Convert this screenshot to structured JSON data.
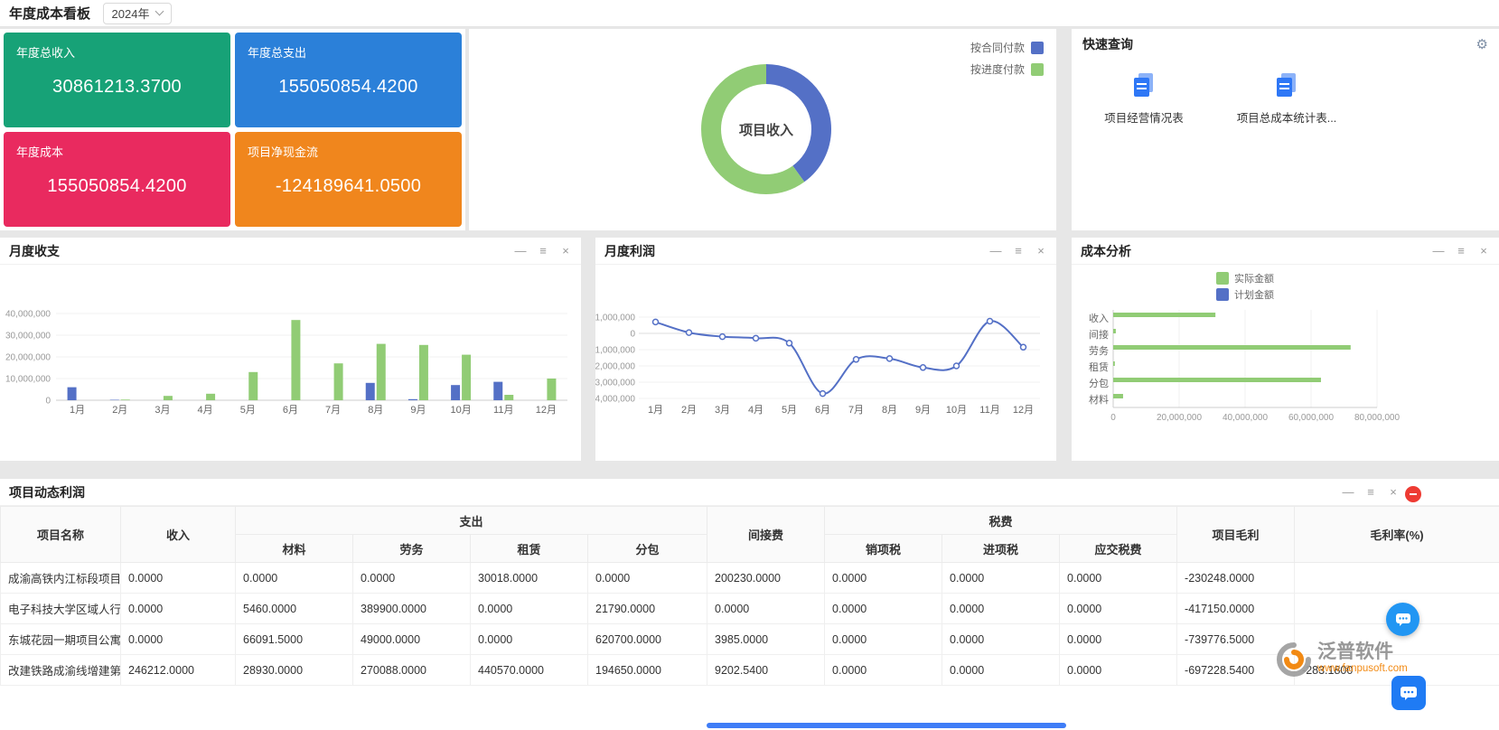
{
  "topbar": {
    "title": "年度成本看板",
    "year": "2024年"
  },
  "icons": {
    "gear": "⚙"
  },
  "window_controls": {
    "minimize": "—",
    "menu": "≡",
    "close": "×"
  },
  "kpi_cards": [
    {
      "label": "年度总收入",
      "value": "30861213.3700",
      "color": "#17a277"
    },
    {
      "label": "年度总支出",
      "value": "155050854.4200",
      "color": "#2b80d9"
    },
    {
      "label": "年度成本",
      "value": "155050854.4200",
      "color": "#e92a5f"
    },
    {
      "label": "项目净现金流",
      "value": "-124189641.0500",
      "color": "#f0861d"
    }
  ],
  "quick_query": {
    "title": "快速查询",
    "items": [
      {
        "label": "项目经营情况表"
      },
      {
        "label": "项目总成本统计表..."
      }
    ]
  },
  "panels": {
    "monthly_balance": "月度收支",
    "monthly_profit": "月度利润",
    "cost_analysis": "成本分析",
    "project_profit": "项目动态利润"
  },
  "chart_data": [
    {
      "id": "donut",
      "type": "pie",
      "title": "项目收入",
      "legend_position": "top-right",
      "series": [
        {
          "name": "按合同付款",
          "value": 40,
          "color": "#5470C6"
        },
        {
          "name": "按进度付款",
          "value": 60,
          "color": "#91CC75"
        }
      ]
    },
    {
      "id": "monthly_balance",
      "type": "bar",
      "title": "月度收支",
      "categories": [
        "1月",
        "2月",
        "3月",
        "4月",
        "5月",
        "6月",
        "7月",
        "8月",
        "9月",
        "10月",
        "11月",
        "12月"
      ],
      "series": [
        {
          "name": "bar-blue",
          "color": "#5470C6",
          "values": [
            6000000,
            200000,
            0,
            0,
            0,
            0,
            0,
            8000000,
            500000,
            7000000,
            8500000,
            0
          ]
        },
        {
          "name": "bar-green",
          "color": "#91CC75",
          "values": [
            0,
            300000,
            2000000,
            3000000,
            13000000,
            37000000,
            17000000,
            26000000,
            25500000,
            21000000,
            2500000,
            10000000
          ]
        }
      ],
      "ylim": [
        0,
        40000000
      ],
      "yticks": [
        "40,000,000",
        "30,000,000",
        "20,000,000",
        "10,000,000",
        "0"
      ]
    },
    {
      "id": "monthly_profit",
      "type": "line",
      "title": "月度利润",
      "categories": [
        "1月",
        "2月",
        "3月",
        "4月",
        "5月",
        "6月",
        "7月",
        "8月",
        "9月",
        "10月",
        "11月",
        "12月"
      ],
      "series": [
        {
          "name": "利润",
          "color": "#5470C6",
          "values": [
            700000,
            50000,
            -200000,
            -300000,
            -600000,
            -3700000,
            -1600000,
            -1550000,
            -2100000,
            -2000000,
            750000,
            -850000
          ]
        }
      ],
      "ylim": [
        -4000000,
        1000000
      ],
      "yticks": [
        "1,000,000",
        "0",
        "-1,000,000",
        "-2,000,000",
        "-3,000,000",
        "-4,000,000"
      ]
    },
    {
      "id": "cost_analysis",
      "type": "hbar",
      "title": "成本分析",
      "categories": [
        "收入",
        "间接",
        "劳务",
        "租赁",
        "分包",
        "材料"
      ],
      "series": [
        {
          "name": "实际金额",
          "color": "#91CC75",
          "values": [
            31000000,
            800000,
            72000000,
            500000,
            63000000,
            3000000
          ]
        },
        {
          "name": "计划金额",
          "color": "#5470C6",
          "values": [
            0,
            0,
            0,
            0,
            0,
            0
          ]
        }
      ],
      "xlim": [
        0,
        80000000
      ],
      "xticks": [
        "0",
        "20,000,000",
        "40,000,000",
        "60,000,000",
        "80,000,000"
      ]
    }
  ],
  "table": {
    "title": "项目动态利润",
    "columns_row1": [
      {
        "label": "项目名称",
        "rowspan": 2
      },
      {
        "label": "收入",
        "rowspan": 2
      },
      {
        "label": "支出",
        "colspan": 4
      },
      {
        "label": "间接费",
        "rowspan": 2
      },
      {
        "label": "税费",
        "colspan": 3
      },
      {
        "label": "项目毛利",
        "rowspan": 2
      },
      {
        "label": "毛利率(%)",
        "rowspan": 2
      }
    ],
    "columns_row2": [
      "材料",
      "劳务",
      "租赁",
      "分包",
      "销项税",
      "进项税",
      "应交税费"
    ],
    "rows": [
      [
        "成渝高铁内江标段项目",
        "0.0000",
        "0.0000",
        "0.0000",
        "30018.0000",
        "0.0000",
        "200230.0000",
        "0.0000",
        "0.0000",
        "0.0000",
        "-230248.0000",
        ""
      ],
      [
        "电子科技大学区域人行",
        "0.0000",
        "5460.0000",
        "389900.0000",
        "0.0000",
        "21790.0000",
        "0.0000",
        "0.0000",
        "0.0000",
        "0.0000",
        "-417150.0000",
        ""
      ],
      [
        "东城花园一期项目公寓",
        "0.0000",
        "66091.5000",
        "49000.0000",
        "0.0000",
        "620700.0000",
        "3985.0000",
        "0.0000",
        "0.0000",
        "0.0000",
        "-739776.5000",
        ""
      ],
      [
        "改建铁路成渝线增建第",
        "246212.0000",
        "28930.0000",
        "270088.0000",
        "440570.0000",
        "194650.0000",
        "9202.5400",
        "0.0000",
        "0.0000",
        "0.0000",
        "-697228.5400",
        "-283.1800"
      ]
    ]
  },
  "watermark": {
    "brand": "泛普软件",
    "site": "www.fanpusoft.com"
  }
}
